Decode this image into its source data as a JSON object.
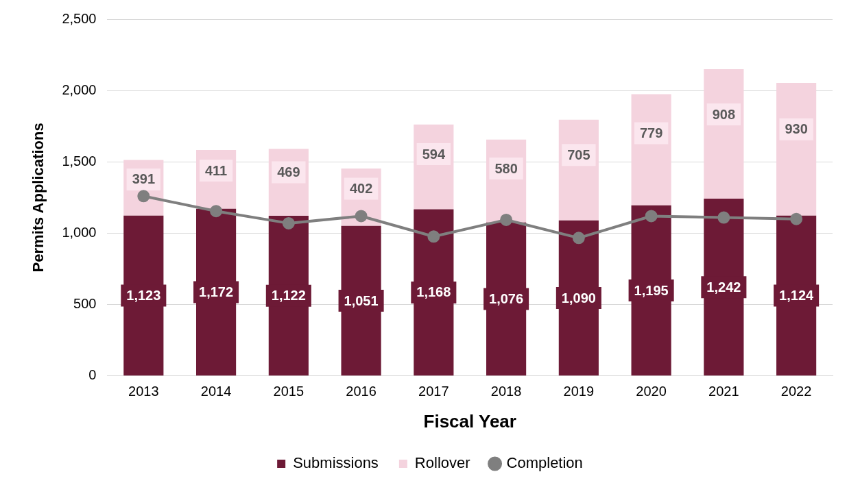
{
  "chart_data": {
    "type": "bar",
    "stacked": true,
    "xlabel": "Fiscal Year",
    "ylabel": "Permits Applications",
    "categories": [
      "2013",
      "2014",
      "2015",
      "2016",
      "2017",
      "2018",
      "2019",
      "2020",
      "2021",
      "2022"
    ],
    "series": [
      {
        "name": "Submissions",
        "color": "#6d1a36",
        "values": [
          1123,
          1172,
          1122,
          1051,
          1168,
          1076,
          1090,
          1195,
          1242,
          1124
        ],
        "value_labels": [
          "1,123",
          "1,172",
          "1,122",
          "1,051",
          "1,168",
          "1,076",
          "1,090",
          "1,195",
          "1,242",
          "1,124"
        ]
      },
      {
        "name": "Rollover",
        "color": "#f4d3de",
        "values": [
          391,
          411,
          469,
          402,
          594,
          580,
          705,
          779,
          908,
          930
        ],
        "value_labels": [
          "391",
          "411",
          "469",
          "402",
          "594",
          "580",
          "705",
          "779",
          "908",
          "930"
        ]
      },
      {
        "name": "Completion",
        "type": "line",
        "color": "#7f7f7f",
        "values": [
          1260,
          1155,
          1070,
          1120,
          977,
          1094,
          967,
          1120,
          1110,
          1100
        ]
      }
    ],
    "ylim": [
      0,
      2500
    ],
    "yticks": [
      0,
      {
        "value": 500,
        "label": "500"
      },
      {
        "value": 1000,
        "label": "1,000"
      },
      {
        "value": 1500,
        "label": "1,500"
      },
      {
        "value": 2000,
        "label": "2,000"
      },
      {
        "value": 2500,
        "label": "2,500"
      }
    ],
    "grid": "y",
    "legend": "bottom",
    "marker": "circle",
    "line_style": "solid"
  }
}
